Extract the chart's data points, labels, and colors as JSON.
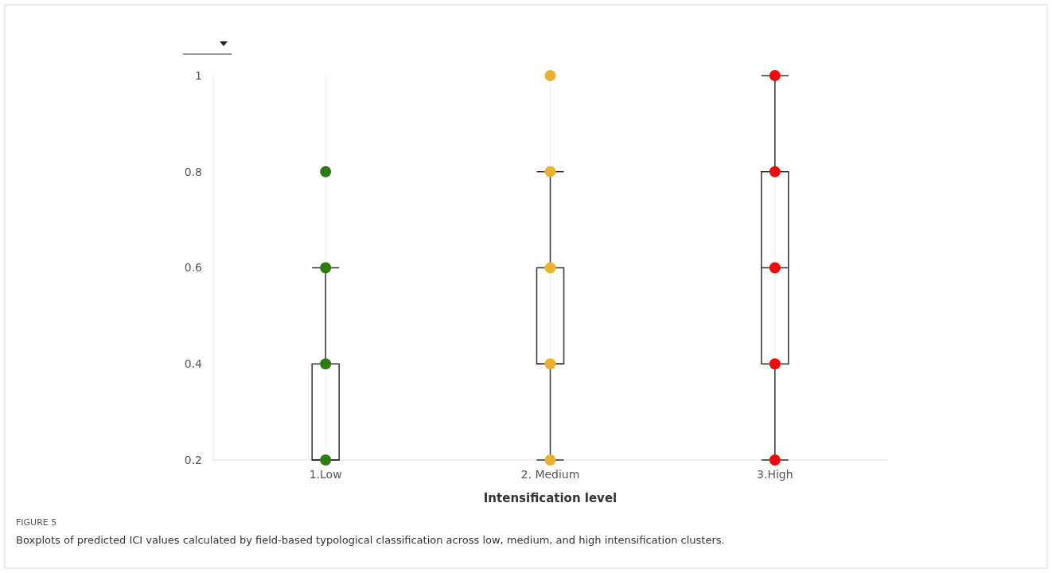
{
  "chart_data": {
    "type": "box",
    "xlabel": "Intensification level",
    "categories": [
      "1.Low",
      "2. Medium",
      "3.High"
    ],
    "boxes": [
      {
        "low": 0.2,
        "q1": 0.2,
        "median": 0.2,
        "q3": 0.4,
        "high": 0.6
      },
      {
        "low": 0.2,
        "q1": 0.4,
        "median": 0.4,
        "q3": 0.6,
        "high": 0.8
      },
      {
        "low": 0.2,
        "q1": 0.4,
        "median": 0.6,
        "q3": 0.8,
        "high": 1
      }
    ],
    "series": [
      {
        "type": "scatter",
        "color": "#2f7a0c",
        "x": [
          "1.Low",
          "1.Low",
          "1.Low",
          "1.Low"
        ],
        "values": [
          0.2,
          0.4,
          0.6,
          0.8
        ]
      },
      {
        "type": "scatter",
        "color": "#ebb230",
        "x": [
          "2. Medium",
          "2. Medium",
          "2. Medium",
          "2. Medium",
          "2. Medium"
        ],
        "values": [
          0.2,
          0.4,
          0.6,
          0.8,
          1
        ]
      },
      {
        "type": "scatter",
        "color": "#f20a0a",
        "x": [
          "3.High",
          "3.High",
          "3.High",
          "3.High",
          "3.High"
        ],
        "values": [
          0.2,
          0.4,
          0.6,
          0.8,
          1
        ]
      }
    ],
    "ylim": [
      0.2,
      1
    ],
    "yticks": [
      0.2,
      0.4,
      0.6,
      0.8,
      1
    ],
    "grid": "x",
    "marker": "circle",
    "annotations": [
      "FIGURE 5",
      "Boxplots of predicted ICI values calculated by field-based typological classification across low, medium, and high intensification clusters."
    ]
  }
}
